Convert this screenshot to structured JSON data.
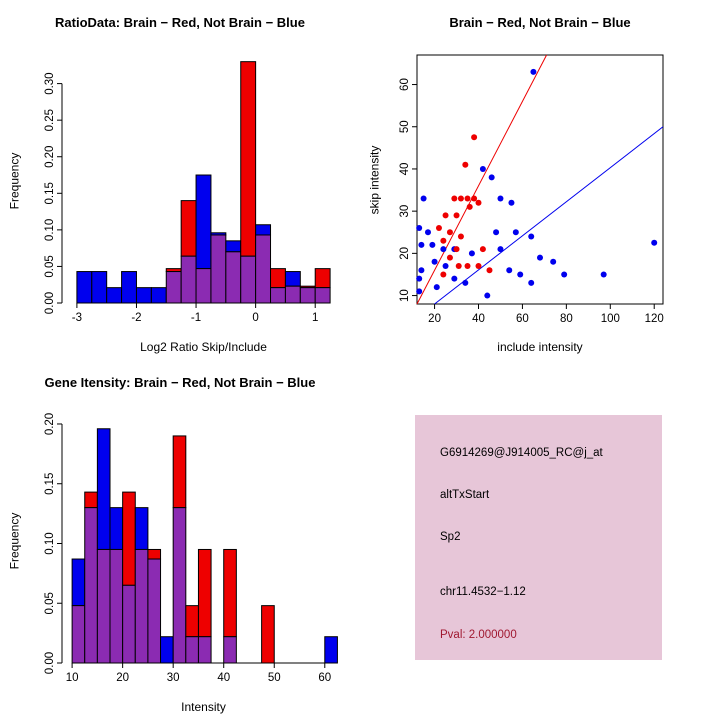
{
  "panels": {
    "info": {
      "bg_color": "#E7C6D8",
      "lines": [
        {
          "text": "G6914269@J914005_RC@j_at",
          "color": "#000000"
        },
        {
          "text": "altTxStart",
          "color": "#000000"
        },
        {
          "text": "Sp2",
          "color": "#000000"
        },
        {
          "text": "chr11.4532−1.12",
          "color": "#000000"
        },
        {
          "text": "Pval: 2.000000",
          "color": "#A01830"
        }
      ]
    }
  },
  "chart_data": [
    {
      "id": "ratio-histogram",
      "type": "bar",
      "title": "RatioData: Brain − Red, Not Brain − Blue",
      "xlabel": "Log2 Ratio Skip/Include",
      "ylabel": "Frequency",
      "grid": false,
      "legend_note": "Brain = red, Not Brain = blue, overlap = purple",
      "bin_start": -3.0,
      "bin_width": 0.25,
      "xlim": [
        -3.25,
        1.5
      ],
      "ylim": [
        0,
        0.335
      ],
      "xticks": [
        -3,
        -2,
        -1,
        0,
        1
      ],
      "xtick_labels": [
        "-3",
        "-2",
        "-1",
        "0",
        "1"
      ],
      "yticks": [
        0,
        0.05,
        0.1,
        0.15,
        0.2,
        0.25,
        0.3
      ],
      "ytick_labels": [
        "0.00",
        "0.05",
        "0.10",
        "0.15",
        "0.20",
        "0.25",
        "0.30"
      ],
      "overlap_color": "#8B2BB2",
      "series": [
        {
          "name": "Not Brain (blue)",
          "color": "#0000EE",
          "values": [
            0.043,
            0.043,
            0.021,
            0.043,
            0.021,
            0.021,
            0.043,
            0.064,
            0.175,
            0.096,
            0.085,
            0.064,
            0.107,
            0.021,
            0.043,
            0.021,
            0.021,
            0
          ]
        },
        {
          "name": "Brain (red)",
          "color": "#EE0000",
          "values": [
            0,
            0,
            0,
            0,
            0,
            0,
            0.047,
            0.14,
            0.047,
            0.093,
            0.07,
            0.33,
            0.093,
            0.047,
            0.023,
            0.023,
            0.047,
            0
          ]
        }
      ]
    },
    {
      "id": "intensity-scatter",
      "type": "scatter",
      "title": "Brain − Red, Not Brain − Blue",
      "xlabel": "include intensity",
      "ylabel": "skip intensity",
      "grid": false,
      "xlim": [
        12,
        124
      ],
      "ylim": [
        8,
        67
      ],
      "xticks": [
        20,
        40,
        60,
        80,
        100,
        120
      ],
      "xtick_labels": [
        "20",
        "40",
        "60",
        "80",
        "100",
        "120"
      ],
      "yticks": [
        10,
        20,
        30,
        40,
        50,
        60
      ],
      "ytick_labels": [
        "10",
        "20",
        "30",
        "40",
        "50",
        "60"
      ],
      "series": [
        {
          "name": "Not Brain (blue)",
          "color": "#0000EE",
          "points": [
            [
              65,
              63
            ],
            [
              42,
              40
            ],
            [
              46,
              38
            ],
            [
              15,
              33
            ],
            [
              50,
              33
            ],
            [
              55,
              32
            ],
            [
              13,
              26
            ],
            [
              17,
              25
            ],
            [
              48,
              25
            ],
            [
              57,
              25
            ],
            [
              64,
              24
            ],
            [
              120,
              22.5
            ],
            [
              14,
              22
            ],
            [
              19,
              22
            ],
            [
              24,
              21
            ],
            [
              29,
              21
            ],
            [
              50,
              21
            ],
            [
              37,
              20
            ],
            [
              68,
              19
            ],
            [
              74,
              18
            ],
            [
              20,
              18
            ],
            [
              25,
              17
            ],
            [
              14,
              16
            ],
            [
              54,
              16
            ],
            [
              59,
              15
            ],
            [
              79,
              15
            ],
            [
              97,
              15
            ],
            [
              13,
              14
            ],
            [
              29,
              14
            ],
            [
              34,
              13
            ],
            [
              64,
              13
            ],
            [
              21,
              12
            ],
            [
              13,
              11
            ],
            [
              44,
              10
            ]
          ]
        },
        {
          "name": "Brain (red)",
          "color": "#EE0000",
          "points": [
            [
              38,
              47.5
            ],
            [
              34,
              41
            ],
            [
              29,
              33
            ],
            [
              32,
              33
            ],
            [
              35,
              33
            ],
            [
              38,
              33
            ],
            [
              40,
              32
            ],
            [
              36,
              31
            ],
            [
              25,
              29
            ],
            [
              30,
              29
            ],
            [
              22,
              26
            ],
            [
              27,
              25
            ],
            [
              32,
              24
            ],
            [
              24,
              23
            ],
            [
              30,
              21
            ],
            [
              42,
              21
            ],
            [
              27,
              19
            ],
            [
              31,
              17
            ],
            [
              35,
              17
            ],
            [
              40,
              17
            ],
            [
              45,
              16
            ],
            [
              24,
              15
            ]
          ]
        }
      ],
      "lines": [
        {
          "name": "brain-fit",
          "color": "#EE0000",
          "x1": 12,
          "y1": 8,
          "x2": 71,
          "y2": 67
        },
        {
          "name": "notbrain-fit",
          "color": "#0000EE",
          "x1": 20,
          "y1": 8,
          "x2": 124,
          "y2": 50
        }
      ]
    },
    {
      "id": "gene-intensity-histogram",
      "type": "bar",
      "title": "Gene Itensity: Brain − Red, Not Brain − Blue",
      "xlabel": "Intensity",
      "ylabel": "Frequency",
      "grid": false,
      "legend_note": "Brain = red, Not Brain = blue, overlap = purple",
      "bin_start": 10,
      "bin_width": 2.5,
      "xlim": [
        8,
        64
      ],
      "ylim": [
        0,
        0.205
      ],
      "xticks": [
        10,
        20,
        30,
        40,
        50,
        60
      ],
      "xtick_labels": [
        "10",
        "20",
        "30",
        "40",
        "50",
        "60"
      ],
      "yticks": [
        0,
        0.05,
        0.1,
        0.15,
        0.2
      ],
      "ytick_labels": [
        "0.00",
        "0.05",
        "0.10",
        "0.15",
        "0.20"
      ],
      "overlap_color": "#8B2BB2",
      "series": [
        {
          "name": "Not Brain (blue)",
          "color": "#0000EE",
          "values": [
            0.087,
            0.13,
            0.196,
            0.13,
            0.065,
            0.13,
            0.087,
            0.022,
            0.13,
            0.022,
            0.022,
            0,
            0.022,
            0,
            0,
            0,
            0,
            0,
            0,
            0,
            0.022
          ]
        },
        {
          "name": "Brain (red)",
          "color": "#EE0000",
          "values": [
            0.048,
            0.143,
            0.095,
            0.095,
            0.143,
            0.095,
            0.095,
            0,
            0.19,
            0.048,
            0.095,
            0,
            0.095,
            0,
            0,
            0.048,
            0,
            0,
            0,
            0,
            0
          ]
        }
      ]
    }
  ]
}
